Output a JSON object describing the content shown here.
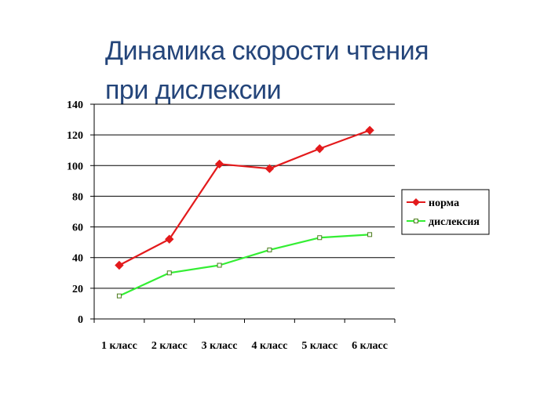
{
  "title_lines": [
    "Динамика скорости чтения",
    "при дислексии"
  ],
  "chart_data": {
    "type": "line",
    "categories": [
      "1 класс",
      "2 класс",
      "3 класс",
      "4 класс",
      "5 класс",
      "6 класс"
    ],
    "series": [
      {
        "name": "норма",
        "color": "#e31a1c",
        "marker": "diamond",
        "values": [
          35,
          52,
          101,
          98,
          111,
          123
        ]
      },
      {
        "name": "дислексия",
        "color": "#33ee33",
        "marker": "square",
        "values": [
          15,
          30,
          35,
          45,
          53,
          55
        ]
      }
    ],
    "ylim": [
      0,
      140
    ],
    "yticks": [
      0,
      20,
      40,
      60,
      80,
      100,
      120,
      140
    ],
    "grid": true,
    "legend": "right"
  }
}
